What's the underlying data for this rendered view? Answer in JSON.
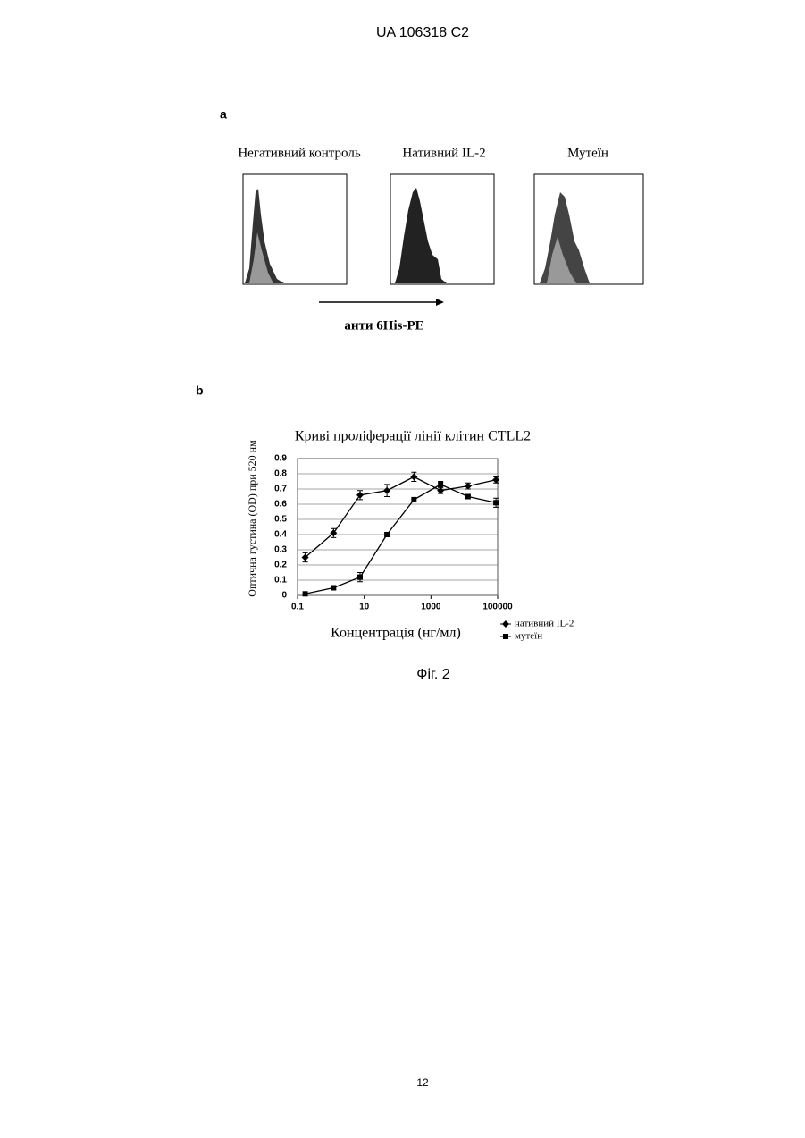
{
  "header": "UA   106318   C2",
  "figure_a": {
    "label": "a",
    "panels": [
      "Негативний контроль",
      "Нативний IL-2",
      "Мутеїн"
    ],
    "axis_label": "анти 6His-PE"
  },
  "figure_b": {
    "label": "b"
  },
  "chart_data": {
    "type": "line",
    "title": "Криві проліферації лінії клітин CTLL2",
    "y_label": "Оптична густина (OD) при 520 нм",
    "x_label": "Концентрація (нг/мл)",
    "x": [
      0.17,
      1.2,
      7.5,
      48,
      310,
      1950,
      13000,
      89000
    ],
    "series": [
      {
        "name": "нативний IL-2",
        "color": "#000000",
        "marker": "diamond",
        "values": [
          0.25,
          0.41,
          0.66,
          0.69,
          0.78,
          0.69,
          0.72,
          0.76
        ],
        "errors": [
          0.03,
          0.03,
          0.03,
          0.04,
          0.03,
          0.02,
          0.02,
          0.02
        ]
      },
      {
        "name": "мутеїн",
        "color": "#000000",
        "marker": "square",
        "values": [
          0.01,
          0.05,
          0.12,
          0.4,
          0.63,
          0.73,
          0.65,
          0.61
        ],
        "errors": [
          0.0,
          0.01,
          0.03,
          0.0,
          0.0,
          0.02,
          0.0,
          0.03
        ]
      }
    ],
    "xlim": [
      0.1,
      100000
    ],
    "xticks": [
      0.1,
      10,
      1000,
      100000
    ],
    "xlog": true,
    "ylim": [
      0,
      0.9
    ],
    "yticks": [
      0,
      0.1,
      0.2,
      0.3,
      0.4,
      0.5,
      0.6,
      0.7,
      0.8,
      0.9
    ],
    "grid": true
  },
  "caption": "Фіг. 2",
  "page_number": "12"
}
